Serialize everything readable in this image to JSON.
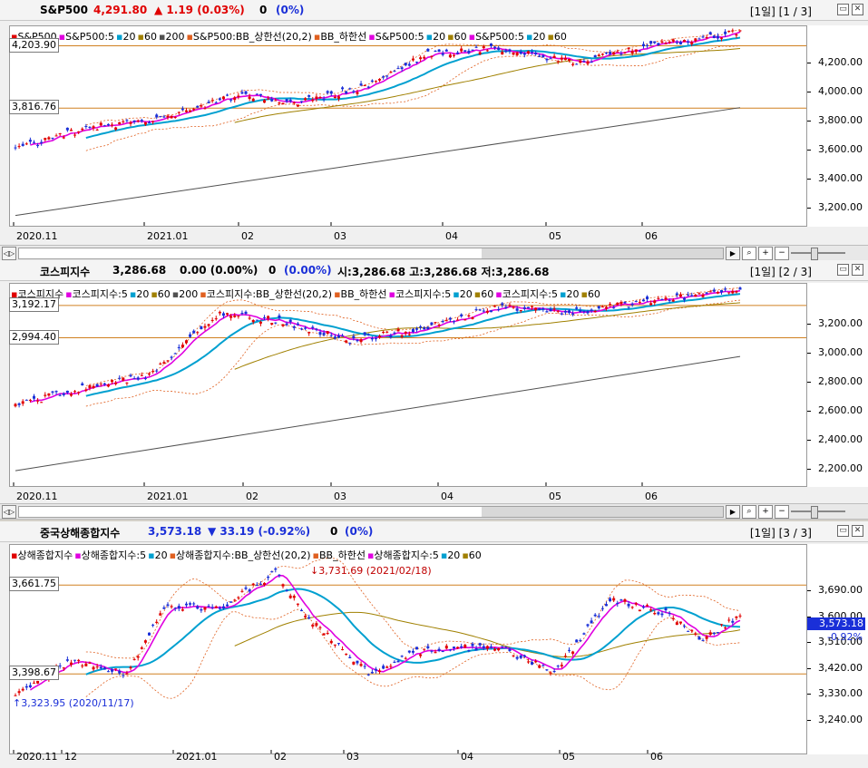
{
  "panels": [
    {
      "header": {
        "name": "S&P500",
        "price": "4,291.80",
        "change": "▲ 1.19 (0.03%)",
        "volume": "0",
        "vol_pct": "(0%)",
        "page": "[1일] [1 / 3]"
      },
      "legend": [
        {
          "t": "S&P500",
          "c": "#e00000"
        },
        {
          "t": "S&P500:5",
          "c": "#e000e0"
        },
        {
          "t": "20",
          "c": "#00a0d0"
        },
        {
          "t": "60",
          "c": "#a08000"
        },
        {
          "t": "200",
          "c": "#505050"
        },
        {
          "t": "S&P500:BB_상한선(20,2)",
          "c": "#e06020"
        },
        {
          "t": "BB_하한선",
          "c": "#e06020"
        },
        {
          "t": "S&P500:5",
          "c": "#e000e0"
        },
        {
          "t": "20",
          "c": "#00a0d0"
        },
        {
          "t": "60",
          "c": "#a08000"
        },
        {
          "t": "S&P500:5",
          "c": "#e000e0"
        },
        {
          "t": "20",
          "c": "#00a0d0"
        },
        {
          "t": "60",
          "c": "#a08000"
        }
      ],
      "ref_lines": [
        {
          "label": "4,203.90",
          "value": 4203.9
        },
        {
          "label": "3,816.76",
          "value": 3816.76
        }
      ],
      "ticks": [
        "4,200.00",
        "4,000.00",
        "3,800.00",
        "3,600.00",
        "3,400.00",
        "3,200.00"
      ],
      "x_labels": [
        "2020.11",
        "2021.01",
        "02",
        "03",
        "04",
        "05",
        "06"
      ]
    },
    {
      "header": {
        "name": "코스피지수",
        "price": "3,286.68",
        "change": "0.00 (0.00%)",
        "volume": "0",
        "vol_pct": "(0.00%)",
        "ohl": "시:3,286.68 고:3,286.68 저:3,286.68",
        "page": "[1일] [2 / 3]"
      },
      "legend": [
        {
          "t": "코스피지수",
          "c": "#e00000"
        },
        {
          "t": "코스피지수:5",
          "c": "#e000e0"
        },
        {
          "t": "20",
          "c": "#00a0d0"
        },
        {
          "t": "60",
          "c": "#a08000"
        },
        {
          "t": "200",
          "c": "#505050"
        },
        {
          "t": "코스피지수:BB_상한선(20,2)",
          "c": "#e06020"
        },
        {
          "t": "BB_하한선",
          "c": "#e06020"
        },
        {
          "t": "코스피지수:5",
          "c": "#e000e0"
        },
        {
          "t": "20",
          "c": "#00a0d0"
        },
        {
          "t": "60",
          "c": "#a08000"
        },
        {
          "t": "코스피지수:5",
          "c": "#e000e0"
        },
        {
          "t": "20",
          "c": "#00a0d0"
        },
        {
          "t": "60",
          "c": "#a08000"
        }
      ],
      "ref_lines": [
        {
          "label": "3,192.17",
          "value": 3192.17
        },
        {
          "label": "2,994.40",
          "value": 2994.4
        }
      ],
      "ticks": [
        "3,200.00",
        "3,000.00",
        "2,800.00",
        "2,600.00",
        "2,400.00",
        "2,200.00"
      ],
      "x_labels": [
        "2020.11",
        "2021.01",
        "02",
        "03",
        "04",
        "05",
        "06"
      ]
    },
    {
      "header": {
        "name": "중국상해종합지수",
        "price": "3,573.18",
        "change": "▼ 33.19 (-0.92%)",
        "volume": "0",
        "vol_pct": "(0%)",
        "page": "[1일] [3 / 3]"
      },
      "legend": [
        {
          "t": "상해종합지수",
          "c": "#e00000"
        },
        {
          "t": "상해종합지수:5",
          "c": "#e000e0"
        },
        {
          "t": "20",
          "c": "#00a0d0"
        },
        {
          "t": "상해종합지수:BB_상한선(20,2)",
          "c": "#e06020"
        },
        {
          "t": "BB_하한선",
          "c": "#e06020"
        },
        {
          "t": "상해종합지수:5",
          "c": "#e000e0"
        },
        {
          "t": "20",
          "c": "#00a0d0"
        },
        {
          "t": "60",
          "c": "#a08000"
        }
      ],
      "ref_lines": [
        {
          "label": "3,661.75",
          "value": 3661.75
        },
        {
          "label": "3,398.67",
          "value": 3398.67
        }
      ],
      "ticks": [
        "3,690.00",
        "3,600.00",
        "3,510.00",
        "3,420.00",
        "3,330.00",
        "3,240.00"
      ],
      "x_labels": [
        "2020.11",
        "12",
        "2021.01",
        "02",
        "03",
        "04",
        "05",
        "06"
      ],
      "annotations": {
        "high": "3,731.69 (2021/02/18)",
        "low": "3,323.95 (2020/11/17)"
      },
      "last_price": "3,573.18",
      "last_pct": "-0.92%"
    }
  ],
  "colors": {
    "up": "#e00000",
    "down": "#1a2fd8",
    "ma5": "#e000e0",
    "ma20": "#00a0d0",
    "ma60": "#a08000",
    "ma200": "#505050",
    "bb": "#e06020",
    "ref": "#d08020"
  }
}
